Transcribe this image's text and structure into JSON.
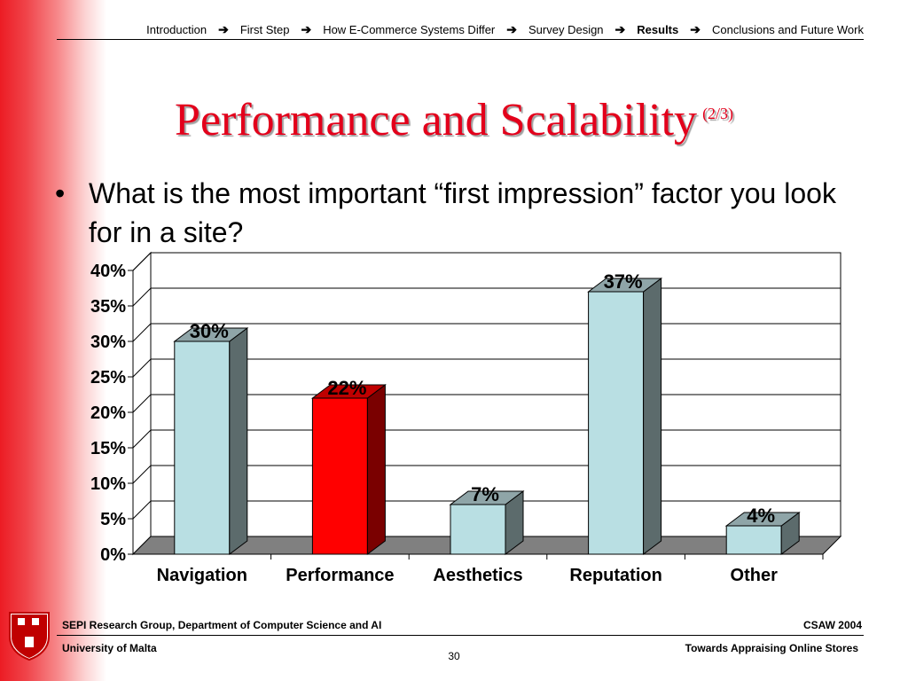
{
  "nav": {
    "items": [
      {
        "label": "Introduction",
        "active": false
      },
      {
        "label": "First Step",
        "active": false
      },
      {
        "label": "How E-Commerce Systems Differ",
        "active": false
      },
      {
        "label": "Survey Design",
        "active": false
      },
      {
        "label": "Results",
        "active": true
      },
      {
        "label": "Conclusions and Future Work",
        "active": false
      }
    ],
    "arrow_glyph": "➔"
  },
  "slide": {
    "title": "Performance and Scalability",
    "title_suffix": "(2/3)",
    "bullet_glyph": "•",
    "bullet_text": "What is the most important “first impression” factor you look for in a site?"
  },
  "chart_data": {
    "type": "bar",
    "categories": [
      "Navigation",
      "Performance",
      "Aesthetics",
      "Reputation",
      "Other"
    ],
    "values": [
      30,
      22,
      7,
      37,
      4
    ],
    "value_labels": [
      "30%",
      "22%",
      "7%",
      "37%",
      "4%"
    ],
    "highlight_index": 1,
    "ylim": [
      0,
      40
    ],
    "yticks": [
      "0%",
      "5%",
      "10%",
      "15%",
      "20%",
      "25%",
      "30%",
      "35%",
      "40%"
    ],
    "grid": true,
    "three_d": true,
    "colors": {
      "bar_front": "#b9dfe3",
      "bar_side": "#5c6b6c",
      "bar_top": "#8fa5a8",
      "highlight_front": "#ff0000",
      "highlight_side": "#7a0000",
      "highlight_top": "#bf0000",
      "floor": "#808080"
    }
  },
  "footer": {
    "left_top": "SEPI Research Group, Department of Computer Science and AI",
    "right_top": "CSAW 2004",
    "left_bottom": "University of Malta",
    "right_bottom": "Towards Appraising Online Stores",
    "page": "30"
  }
}
